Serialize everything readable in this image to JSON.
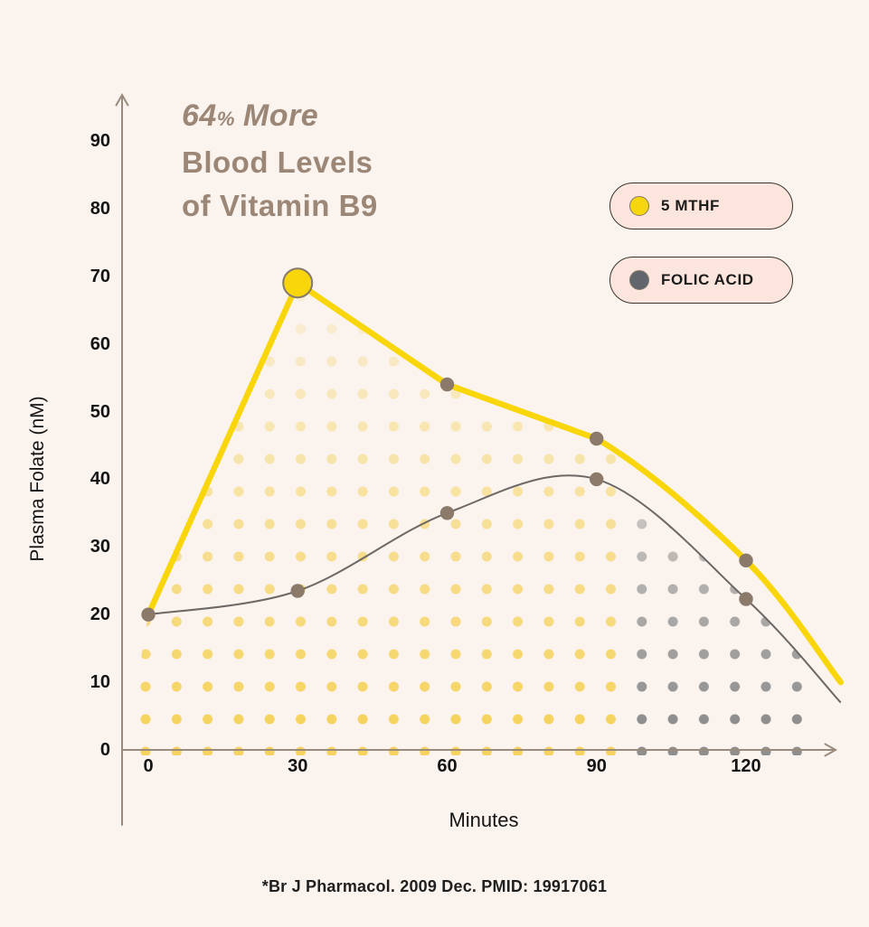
{
  "title": {
    "prefix": "64",
    "percent": "%",
    "suffix": "More",
    "line2": "Blood Levels",
    "line3": "of Vitamin B9"
  },
  "legend": [
    {
      "label": "5 MTHF",
      "dot_color": "#f6d60c"
    },
    {
      "label": "FOLIC ACID",
      "dot_color": "#60666c"
    }
  ],
  "footnote": "*Br J Pharmacol. 2009 Dec. PMID: 19917061",
  "colors": {
    "background": "#faf3ee",
    "title": "#9c8777",
    "accent_yellow": "#f8d60a",
    "curve_gray": "#6b6866",
    "marker_taupe": "#8b7969",
    "marker_outline": "#85796c",
    "dot_yellow": "#f5d35e",
    "dot_gray": "#8e8e8e",
    "legend_pill_bg": "#fbe5dc",
    "axis": "#9a8b7c"
  },
  "chart_data": {
    "type": "line",
    "title": "64% More Blood Levels of Vitamin B9",
    "xlabel": "Minutes",
    "ylabel": "Plasma Folate (nM)",
    "x_ticks": [
      0,
      30,
      60,
      90,
      120
    ],
    "y_ticks": [
      0,
      10,
      20,
      30,
      40,
      50,
      60,
      70,
      80,
      90
    ],
    "xlim": [
      0,
      140
    ],
    "ylim": [
      0,
      97
    ],
    "grid": false,
    "legend_position": "top-right",
    "series": [
      {
        "name": "5 MTHF",
        "color": "#f8d60a",
        "x": [
          0,
          30,
          60,
          90,
          120,
          139
        ],
        "values": [
          20,
          69,
          54,
          46,
          28,
          10
        ],
        "peak_marker": {
          "x": 30,
          "value": 69
        },
        "area_fill": "yellow polka dots fading upward"
      },
      {
        "name": "FOLIC ACID",
        "color": "#6b6866",
        "x": [
          0,
          30,
          60,
          90,
          120,
          139
        ],
        "values": [
          20,
          23.5,
          35,
          40,
          22.3,
          7
        ],
        "area_fill": "gray polka dots on right portion"
      }
    ]
  }
}
